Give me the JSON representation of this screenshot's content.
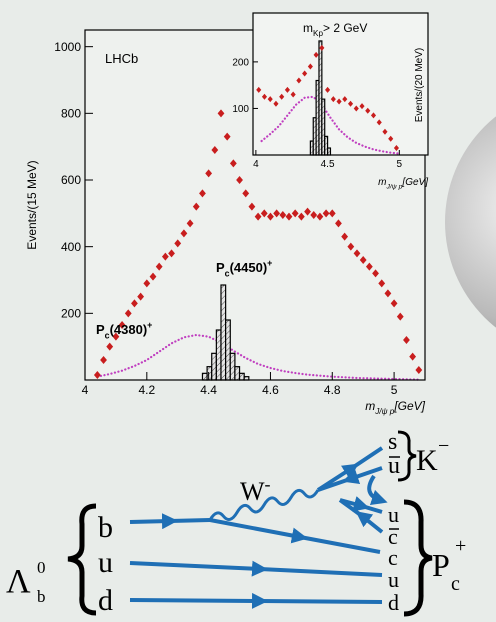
{
  "chart_data": [
    {
      "type": "scatter",
      "label": "LHCb",
      "y_label": "Events/(15 MeV)",
      "x_label": {
        "main": "m",
        "sub": "J/ψ p",
        "unit": "[GeV]"
      },
      "xlim": [
        4.0,
        5.1
      ],
      "xticks": [
        4,
        4.2,
        4.4,
        4.6,
        4.8,
        5
      ],
      "ylim": [
        0,
        1050
      ],
      "yticks": [
        200,
        400,
        600,
        800,
        1000
      ],
      "annotations": [
        {
          "main": "P",
          "sub": "c",
          "rest": "(4450)",
          "sup": "+"
        },
        {
          "main": "P",
          "sub": "c",
          "rest": "(4380)",
          "sup": "+"
        }
      ],
      "series": [
        {
          "style": "curve",
          "color": "#c040c0",
          "x": [
            4.04,
            4.08,
            4.12,
            4.16,
            4.2,
            4.24,
            4.28,
            4.32,
            4.36,
            4.4,
            4.44,
            4.48,
            4.52,
            4.56,
            4.6,
            4.64,
            4.68,
            4.72,
            4.76,
            4.8,
            4.84,
            4.88,
            4.92,
            4.96,
            5.0,
            5.04,
            5.08
          ],
          "values": [
            10,
            18,
            28,
            42,
            60,
            85,
            110,
            128,
            135,
            130,
            112,
            88,
            66,
            48,
            36,
            27,
            21,
            16,
            13,
            10,
            8,
            6,
            5,
            4,
            3,
            2,
            1
          ]
        },
        {
          "style": "histogram",
          "color": "#000000",
          "bins": [
            4.38,
            4.395,
            4.41,
            4.425,
            4.44,
            4.455,
            4.47,
            4.485,
            4.5,
            4.515,
            4.53
          ],
          "values": [
            20,
            40,
            80,
            150,
            285,
            180,
            80,
            40,
            20,
            10
          ]
        },
        {
          "style": "points",
          "color": "#c81e1e",
          "x": [
            4.04,
            4.06,
            4.08,
            4.1,
            4.12,
            4.14,
            4.16,
            4.18,
            4.2,
            4.22,
            4.24,
            4.26,
            4.28,
            4.3,
            4.32,
            4.34,
            4.36,
            4.38,
            4.4,
            4.42,
            4.44,
            4.46,
            4.48,
            4.5,
            4.52,
            4.54,
            4.56,
            4.58,
            4.6,
            4.62,
            4.64,
            4.66,
            4.68,
            4.7,
            4.72,
            4.74,
            4.76,
            4.78,
            4.8,
            4.82,
            4.84,
            4.86,
            4.88,
            4.9,
            4.92,
            4.94,
            4.96,
            4.98,
            5.0,
            5.02,
            5.04,
            5.06,
            5.08
          ],
          "values": [
            15,
            60,
            100,
            130,
            165,
            200,
            230,
            250,
            290,
            310,
            340,
            370,
            380,
            410,
            440,
            470,
            520,
            560,
            620,
            690,
            800,
            730,
            650,
            600,
            560,
            520,
            490,
            500,
            490,
            500,
            495,
            490,
            500,
            490,
            505,
            495,
            490,
            500,
            500,
            470,
            430,
            400,
            380,
            360,
            340,
            320,
            290,
            260,
            230,
            190,
            120,
            70,
            30
          ]
        }
      ]
    },
    {
      "type": "scatter",
      "title": {
        "main": "m",
        "sub": "Kp",
        "rest": "> 2 GeV"
      },
      "y_label": "Events/(20 MeV)",
      "x_label": {
        "main": "m",
        "sub": "J/ψ p",
        "unit": "[GeV]"
      },
      "xlim": [
        3.98,
        5.2
      ],
      "xticks": [
        4,
        4.5,
        5
      ],
      "ylim": [
        0,
        305
      ],
      "yticks": [
        100,
        200
      ],
      "series": [
        {
          "style": "curve",
          "color": "#c040c0",
          "x": [
            4.04,
            4.1,
            4.16,
            4.22,
            4.28,
            4.34,
            4.4,
            4.46,
            4.52,
            4.58,
            4.64,
            4.7,
            4.76,
            4.82,
            4.88,
            4.94,
            5.0
          ],
          "values": [
            30,
            45,
            62,
            85,
            108,
            123,
            125,
            108,
            80,
            55,
            38,
            26,
            18,
            12,
            8,
            5,
            3
          ]
        },
        {
          "style": "histogram",
          "color": "#000000",
          "bins": [
            4.38,
            4.4,
            4.42,
            4.44,
            4.46,
            4.48,
            4.5,
            4.52
          ],
          "values": [
            30,
            80,
            160,
            245,
            120,
            40,
            15
          ]
        },
        {
          "style": "points",
          "color": "#c81e1e",
          "x": [
            4.02,
            4.06,
            4.1,
            4.14,
            4.18,
            4.22,
            4.26,
            4.3,
            4.34,
            4.38,
            4.42,
            4.46,
            4.5,
            4.54,
            4.58,
            4.62,
            4.66,
            4.7,
            4.74,
            4.78,
            4.82,
            4.86,
            4.9,
            4.94,
            4.98
          ],
          "values": [
            140,
            125,
            120,
            110,
            125,
            140,
            130,
            160,
            175,
            190,
            215,
            230,
            140,
            120,
            115,
            120,
            110,
            100,
            105,
            95,
            85,
            70,
            50,
            35,
            15
          ]
        }
      ]
    }
  ],
  "diagram": {
    "boson": {
      "symbol": "W",
      "charge": "-"
    },
    "initial": {
      "symbol": "Λ",
      "sub": "b",
      "sup": "0",
      "quarks": [
        "b",
        "u",
        "d"
      ]
    },
    "meson": {
      "symbol": "K",
      "sup": "−",
      "quarks": [
        "s",
        "u"
      ]
    },
    "pentaquark": {
      "symbol": "P",
      "sub": "c",
      "sup": "+",
      "quarks": [
        "u",
        "c",
        "c",
        "u",
        "d"
      ]
    }
  }
}
